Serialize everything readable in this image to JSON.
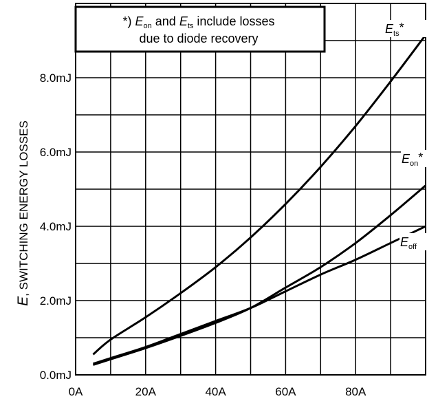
{
  "chart_data": {
    "type": "line",
    "ylabel_italic": "E",
    "ylabel_rest": ", SWITCHING ENERGY LOSSES",
    "x_ticks": [
      {
        "value": 0,
        "label": "0A"
      },
      {
        "value": 20,
        "label": "20A"
      },
      {
        "value": 40,
        "label": "40A"
      },
      {
        "value": 60,
        "label": "60A"
      },
      {
        "value": 80,
        "label": "80A"
      }
    ],
    "y_ticks": [
      {
        "value": 0,
        "label": "0.0mJ"
      },
      {
        "value": 2,
        "label": "2.0mJ"
      },
      {
        "value": 4,
        "label": "4.0mJ"
      },
      {
        "value": 6,
        "label": "6.0mJ"
      },
      {
        "value": 8,
        "label": "8.0mJ"
      }
    ],
    "xlim": [
      0,
      100
    ],
    "ylim": [
      0,
      10
    ],
    "grid": true,
    "x_grid_step": 10,
    "y_grid_step": 1,
    "annotation": {
      "line1_prefix": "*) ",
      "line1_e1": "E",
      "line1_e1_sub": "on",
      "line1_mid": " and ",
      "line1_e2": "E",
      "line1_e2_sub": "ts",
      "line1_suffix": " include losses",
      "line2": "due to diode recovery"
    },
    "series": [
      {
        "key": "ets",
        "label_main": "E",
        "label_sub": "ts",
        "label_suffix": "*",
        "x": [
          5,
          10,
          20,
          30,
          40,
          50,
          60,
          70,
          80,
          90,
          100
        ],
        "y": [
          0.55,
          0.95,
          1.55,
          2.2,
          2.9,
          3.7,
          4.6,
          5.6,
          6.7,
          7.9,
          9.15
        ]
      },
      {
        "key": "eon",
        "label_main": "E",
        "label_sub": "on",
        "label_suffix": "*",
        "x": [
          5,
          10,
          20,
          30,
          40,
          50,
          60,
          70,
          80,
          90,
          100
        ],
        "y": [
          0.27,
          0.42,
          0.72,
          1.05,
          1.4,
          1.8,
          2.35,
          2.9,
          3.55,
          4.3,
          5.1
        ]
      },
      {
        "key": "eoff",
        "label_main": "E",
        "label_sub": "off",
        "label_suffix": "",
        "x": [
          5,
          10,
          20,
          30,
          40,
          50,
          60,
          70,
          80,
          90,
          100
        ],
        "y": [
          0.3,
          0.45,
          0.75,
          1.1,
          1.45,
          1.8,
          2.25,
          2.7,
          3.1,
          3.55,
          4.0
        ]
      }
    ]
  }
}
